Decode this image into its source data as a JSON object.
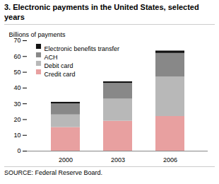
{
  "chart_data": {
    "type": "bar",
    "stacked": true,
    "title": "3.  Electronic payments in the United States, selected years",
    "ylabel": "Billions of payments",
    "source": "SOURCE:  Federal Reserve Board.",
    "categories": [
      "2000",
      "2003",
      "2006"
    ],
    "series": [
      {
        "name": "Credit card",
        "color": "#e8a0a0",
        "values": [
          15,
          19,
          22
        ]
      },
      {
        "name": "Debit card",
        "color": "#b8b8b8",
        "values": [
          8,
          14,
          25
        ]
      },
      {
        "name": "ACH",
        "color": "#888888",
        "values": [
          7,
          10,
          15
        ]
      },
      {
        "name": "Electronic benefits transfer",
        "color": "#111111",
        "values": [
          1,
          1,
          1.5
        ]
      }
    ],
    "ylim": [
      0,
      70
    ],
    "yticks": [
      0,
      10,
      20,
      30,
      40,
      50,
      60,
      70
    ],
    "grid": false,
    "legend": "upper left"
  }
}
